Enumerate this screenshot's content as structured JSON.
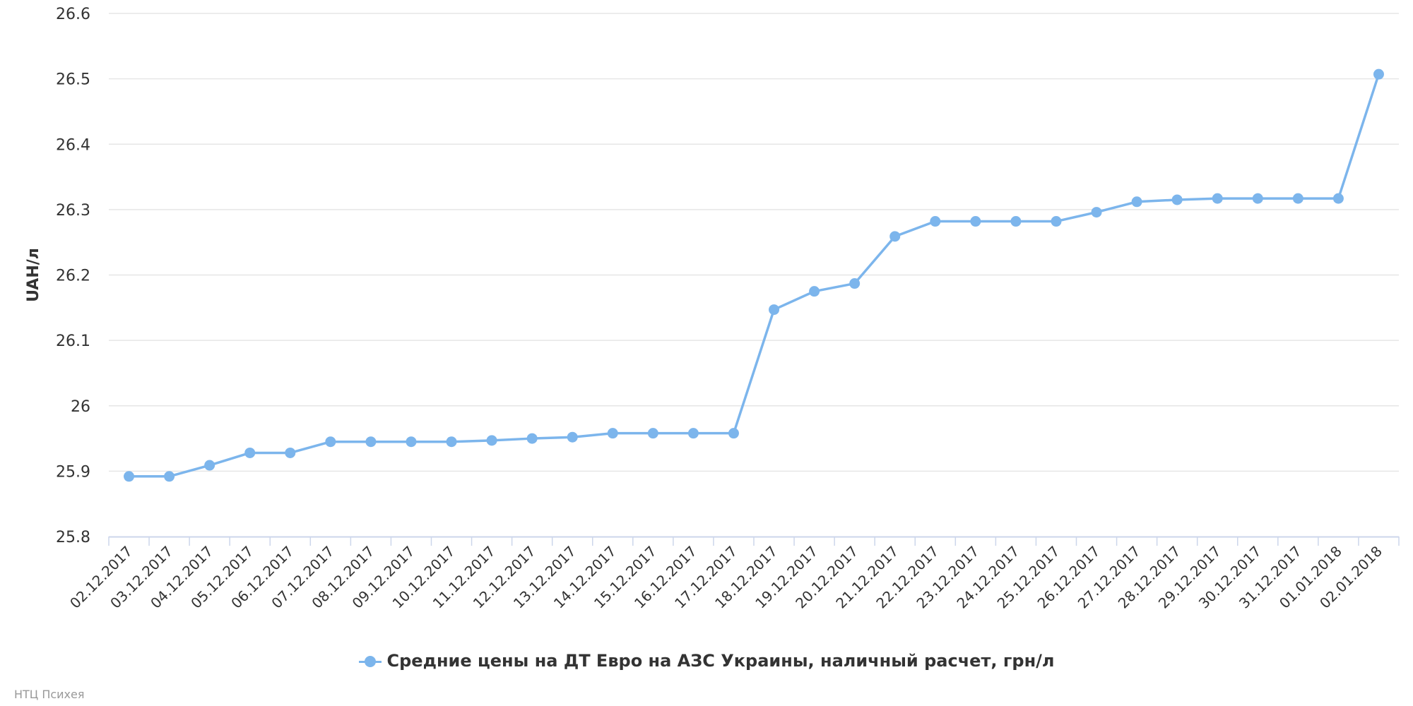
{
  "chart_data": {
    "type": "line",
    "title": "",
    "xlabel": "",
    "ylabel": "UAH/л",
    "ylim": [
      25.8,
      26.6
    ],
    "yticks": [
      "25.8",
      "25.9",
      "26",
      "26.1",
      "26.2",
      "26.3",
      "26.4",
      "26.5",
      "26.6"
    ],
    "ytick_values": [
      25.8,
      25.9,
      26.0,
      26.1,
      26.2,
      26.3,
      26.4,
      26.5,
      26.6
    ],
    "grid": true,
    "legend_position": "bottom-center",
    "categories": [
      "02.12.2017",
      "03.12.2017",
      "04.12.2017",
      "05.12.2017",
      "06.12.2017",
      "07.12.2017",
      "08.12.2017",
      "09.12.2017",
      "10.12.2017",
      "11.12.2017",
      "12.12.2017",
      "13.12.2017",
      "14.12.2017",
      "15.12.2017",
      "16.12.2017",
      "17.12.2017",
      "18.12.2017",
      "19.12.2017",
      "20.12.2017",
      "21.12.2017",
      "22.12.2017",
      "23.12.2017",
      "24.12.2017",
      "25.12.2017",
      "26.12.2017",
      "27.12.2017",
      "28.12.2017",
      "29.12.2017",
      "30.12.2017",
      "31.12.2017",
      "01.01.2018",
      "02.01.2018"
    ],
    "series": [
      {
        "name": "Средние цены на ДТ Евро на АЗС Украины, наличный расчет, грн/л",
        "color": "#7cb5ec",
        "values": [
          25.892,
          25.892,
          25.909,
          25.928,
          25.928,
          25.945,
          25.945,
          25.945,
          25.945,
          25.947,
          25.95,
          25.952,
          25.958,
          25.958,
          25.958,
          25.958,
          26.147,
          26.175,
          26.187,
          26.259,
          26.282,
          26.282,
          26.282,
          26.282,
          26.296,
          26.312,
          26.315,
          26.317,
          26.317,
          26.317,
          26.317,
          26.507
        ]
      }
    ]
  },
  "credit": "НТЦ Психея"
}
